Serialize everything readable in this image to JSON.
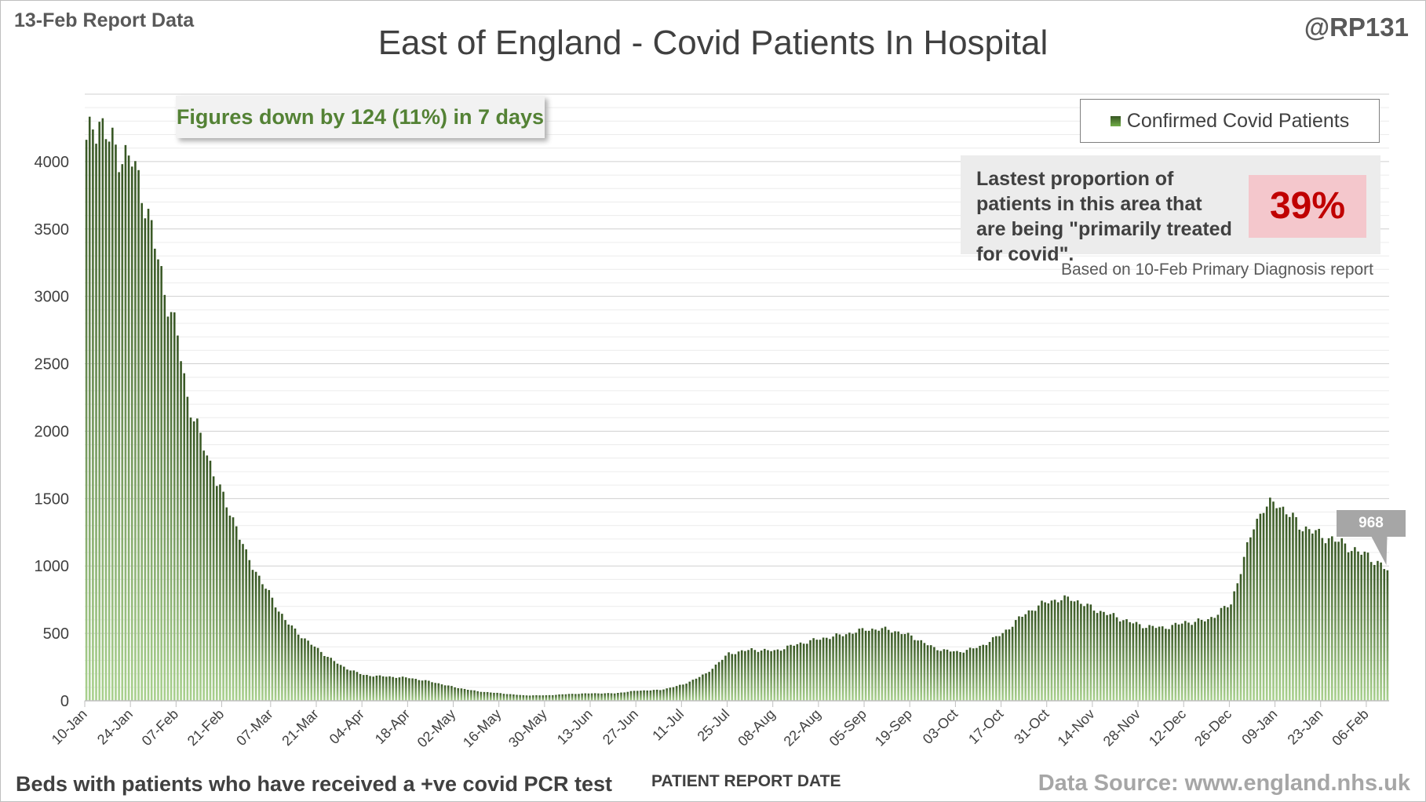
{
  "header": {
    "report_label": "13-Feb Report Data",
    "author": "@RP131"
  },
  "footer": {
    "left_note": "Beds with patients who have received a +ve covid PCR test",
    "source": "Data Source: www.england.nhs.uk"
  },
  "annotations": {
    "change_note": "Figures down by 124 (11%) in 7 days",
    "proportion_text": "Lastest proportion of patients in this area that are being \"primarily treated for covid\".",
    "proportion_value": "39%",
    "proportion_source": "Based on 10-Feb Primary Diagnosis report",
    "latest_value_label": "968"
  },
  "colors": {
    "bar_top": "#375623",
    "bar_bottom": "#a9d18e",
    "accent_red": "#c00000",
    "note_green": "#548235"
  },
  "chart_data": {
    "type": "bar",
    "title": "East of England - Covid Patients In Hospital",
    "xlabel": "PATIENT REPORT DATE",
    "ylabel": "",
    "ylim": [
      0,
      4500
    ],
    "yticks": [
      0,
      500,
      1000,
      1500,
      2000,
      2500,
      3000,
      3500,
      4000
    ],
    "grid": true,
    "legend": {
      "position": "top-right",
      "entries": [
        "Confirmed Covid Patients"
      ]
    },
    "series": [
      {
        "name": "Confirmed Covid Patients",
        "anchors": [
          [
            "10-Jan",
            4100
          ],
          [
            "12-Jan",
            4280
          ],
          [
            "14-Jan",
            4300
          ],
          [
            "17-Jan",
            4150
          ],
          [
            "21-Jan",
            4050
          ],
          [
            "24-Jan",
            4000
          ],
          [
            "27-Jan",
            3800
          ],
          [
            "31-Jan",
            3380
          ],
          [
            "03-Feb",
            3050
          ],
          [
            "07-Feb",
            2700
          ],
          [
            "10-Feb",
            2250
          ],
          [
            "14-Feb",
            1950
          ],
          [
            "18-Feb",
            1700
          ],
          [
            "21-Feb",
            1500
          ],
          [
            "25-Feb",
            1300
          ],
          [
            "28-Feb",
            1080
          ],
          [
            "04-Mar",
            880
          ],
          [
            "07-Mar",
            750
          ],
          [
            "11-Mar",
            600
          ],
          [
            "14-Mar",
            520
          ],
          [
            "21-Mar",
            380
          ],
          [
            "28-Mar",
            260
          ],
          [
            "04-Apr",
            190
          ],
          [
            "11-Apr",
            180
          ],
          [
            "18-Apr",
            170
          ],
          [
            "25-Apr",
            140
          ],
          [
            "02-May",
            100
          ],
          [
            "09-May",
            70
          ],
          [
            "16-May",
            55
          ],
          [
            "23-May",
            40
          ],
          [
            "30-May",
            40
          ],
          [
            "06-Jun",
            50
          ],
          [
            "13-Jun",
            55
          ],
          [
            "20-Jun",
            55
          ],
          [
            "27-Jun",
            75
          ],
          [
            "04-Jul",
            80
          ],
          [
            "11-Jul",
            120
          ],
          [
            "18-Jul",
            200
          ],
          [
            "25-Jul",
            350
          ],
          [
            "01-Aug",
            380
          ],
          [
            "08-Aug",
            370
          ],
          [
            "15-Aug",
            420
          ],
          [
            "22-Aug",
            460
          ],
          [
            "29-Aug",
            490
          ],
          [
            "05-Sep",
            530
          ],
          [
            "12-Sep",
            530
          ],
          [
            "19-Sep",
            480
          ],
          [
            "26-Sep",
            390
          ],
          [
            "03-Oct",
            360
          ],
          [
            "10-Oct",
            400
          ],
          [
            "17-Oct",
            500
          ],
          [
            "24-Oct",
            650
          ],
          [
            "31-Oct",
            740
          ],
          [
            "07-Nov",
            760
          ],
          [
            "14-Nov",
            680
          ],
          [
            "21-Nov",
            620
          ],
          [
            "28-Nov",
            560
          ],
          [
            "05-Dec",
            540
          ],
          [
            "12-Dec",
            580
          ],
          [
            "19-Dec",
            600
          ],
          [
            "26-Dec",
            720
          ],
          [
            "30-Dec",
            1050
          ],
          [
            "02-Jan",
            1300
          ],
          [
            "05-Jan",
            1430
          ],
          [
            "09-Jan",
            1470
          ],
          [
            "13-Jan",
            1380
          ],
          [
            "16-Jan",
            1300
          ],
          [
            "20-Jan",
            1260
          ],
          [
            "23-Jan",
            1220
          ],
          [
            "26-Jan",
            1200
          ],
          [
            "30-Jan",
            1160
          ],
          [
            "03-Feb",
            1100
          ],
          [
            "06-Feb",
            1080
          ],
          [
            "09-Feb",
            1020
          ],
          [
            "12-Feb",
            968
          ]
        ]
      }
    ],
    "x_tick_labels": [
      "10-Jan",
      "24-Jan",
      "07-Feb",
      "21-Feb",
      "07-Mar",
      "21-Mar",
      "04-Apr",
      "18-Apr",
      "02-May",
      "16-May",
      "30-May",
      "13-Jun",
      "27-Jun",
      "11-Jul",
      "25-Jul",
      "08-Aug",
      "22-Aug",
      "05-Sep",
      "19-Sep",
      "03-Oct",
      "17-Oct",
      "31-Oct",
      "14-Nov",
      "28-Nov",
      "12-Dec",
      "26-Dec",
      "09-Jan",
      "23-Jan",
      "06-Feb"
    ],
    "latest": {
      "date": "12-Feb",
      "value": 968
    }
  }
}
